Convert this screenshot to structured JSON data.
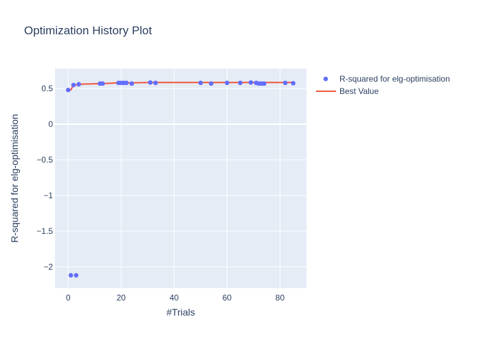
{
  "chart_data": {
    "type": "scatter",
    "title": "Optimization History Plot",
    "xlabel": "#Trials",
    "ylabel": "R-squared for elg-optimisation",
    "xlim": [
      -5,
      90
    ],
    "ylim": [
      -2.3,
      0.78
    ],
    "x_ticks": [
      0,
      20,
      40,
      60,
      80
    ],
    "y_ticks": [
      -2,
      -1.5,
      -1,
      -0.5,
      0,
      0.5
    ],
    "y_tick_labels": [
      "−2",
      "−1.5",
      "−1",
      "−0.5",
      "0",
      "0.5"
    ],
    "grid": true,
    "legend_position": "top-right",
    "series": [
      {
        "name": "R-squared for elg-optimisation",
        "kind": "markers",
        "color": "#636efa",
        "x": [
          0,
          1,
          2,
          3,
          4,
          12,
          13,
          19,
          20,
          21,
          22,
          24,
          31,
          33,
          50,
          54,
          60,
          65,
          69,
          71,
          72,
          73,
          74,
          82,
          85
        ],
        "y": [
          0.48,
          -2.12,
          0.55,
          -2.12,
          0.56,
          0.57,
          0.57,
          0.58,
          0.58,
          0.58,
          0.58,
          0.57,
          0.585,
          0.58,
          0.58,
          0.57,
          0.58,
          0.58,
          0.585,
          0.58,
          0.57,
          0.57,
          0.57,
          0.58,
          0.575
        ]
      },
      {
        "name": "Best Value",
        "kind": "line",
        "color": "#ef553b",
        "x": [
          0,
          1,
          2,
          3,
          4,
          12,
          13,
          19,
          20,
          21,
          22,
          24,
          31,
          33,
          50,
          54,
          60,
          65,
          69,
          71,
          72,
          73,
          74,
          82,
          85
        ],
        "y": [
          0.48,
          0.48,
          0.55,
          0.55,
          0.56,
          0.57,
          0.57,
          0.58,
          0.58,
          0.58,
          0.58,
          0.58,
          0.585,
          0.585,
          0.585,
          0.585,
          0.585,
          0.585,
          0.585,
          0.585,
          0.585,
          0.585,
          0.585,
          0.585,
          0.585
        ]
      }
    ]
  }
}
